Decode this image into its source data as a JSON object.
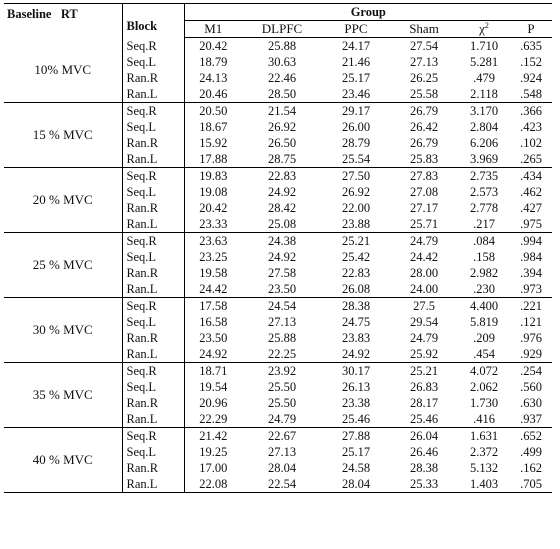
{
  "header": {
    "baseline_label": "Baseline   RT",
    "block_label": "Block",
    "group_label": "Group",
    "columns": [
      "M1",
      "DLPFC",
      "PPC",
      "Sham",
      "χ",
      "P"
    ],
    "chi_superscript": "2"
  },
  "sections": [
    {
      "label": "10% MVC",
      "rows": [
        [
          "Seq.R",
          "20.42",
          "25.88",
          "24.17",
          "27.54",
          "1.710",
          ".635"
        ],
        [
          "Seq.L",
          "18.79",
          "30.63",
          "21.46",
          "27.13",
          "5.281",
          ".152"
        ],
        [
          "Ran.R",
          "24.13",
          "22.46",
          "25.17",
          "26.25",
          ".479",
          ".924"
        ],
        [
          "Ran.L",
          "20.46",
          "28.50",
          "23.46",
          "25.58",
          "2.118",
          ".548"
        ]
      ]
    },
    {
      "label": "15 % MVC",
      "rows": [
        [
          "Seq.R",
          "20.50",
          "21.54",
          "29.17",
          "26.79",
          "3.170",
          ".366"
        ],
        [
          "Seq.L",
          "18.67",
          "26.92",
          "26.00",
          "26.42",
          "2.804",
          ".423"
        ],
        [
          "Ran.R",
          "15.92",
          "26.50",
          "28.79",
          "26.79",
          "6.206",
          ".102"
        ],
        [
          "Ran.L",
          "17.88",
          "28.75",
          "25.54",
          "25.83",
          "3.969",
          ".265"
        ]
      ]
    },
    {
      "label": "20 % MVC",
      "rows": [
        [
          "Seq.R",
          "19.83",
          "22.83",
          "27.50",
          "27.83",
          "2.735",
          ".434"
        ],
        [
          "Seq.L",
          "19.08",
          "24.92",
          "26.92",
          "27.08",
          "2.573",
          ".462"
        ],
        [
          "Ran.R",
          "20.42",
          "28.42",
          "22.00",
          "27.17",
          "2.778",
          ".427"
        ],
        [
          "Ran.L",
          "23.33",
          "25.08",
          "23.88",
          "25.71",
          ".217",
          ".975"
        ]
      ]
    },
    {
      "label": "25 % MVC",
      "rows": [
        [
          "Seq.R",
          "23.63",
          "24.38",
          "25.21",
          "24.79",
          ".084",
          ".994"
        ],
        [
          "Seq.L",
          "23.25",
          "24.92",
          "25.42",
          "24.42",
          ".158",
          ".984"
        ],
        [
          "Ran.R",
          "19.58",
          "27.58",
          "22.83",
          "28.00",
          "2.982",
          ".394"
        ],
        [
          "Ran.L",
          "24.42",
          "23.50",
          "26.08",
          "24.00",
          ".230",
          ".973"
        ]
      ]
    },
    {
      "label": "30 % MVC",
      "rows": [
        [
          "Seq.R",
          "17.58",
          "24.54",
          "28.38",
          "27.5",
          "4.400",
          ".221"
        ],
        [
          "Seq.L",
          "16.58",
          "27.13",
          "24.75",
          "29.54",
          "5.819",
          ".121"
        ],
        [
          "Ran.R",
          "23.50",
          "25.88",
          "23.83",
          "24.79",
          ".209",
          ".976"
        ],
        [
          "Ran.L",
          "24.92",
          "22.25",
          "24.92",
          "25.92",
          ".454",
          ".929"
        ]
      ]
    },
    {
      "label": "35 % MVC",
      "rows": [
        [
          "Seq.R",
          "18.71",
          "23.92",
          "30.17",
          "25.21",
          "4.072",
          ".254"
        ],
        [
          "Seq.L",
          "19.54",
          "25.50",
          "26.13",
          "26.83",
          "2.062",
          ".560"
        ],
        [
          "Ran.R",
          "20.96",
          "25.50",
          "23.38",
          "28.17",
          "1.730",
          ".630"
        ],
        [
          "Ran.L",
          "22.29",
          "24.79",
          "25.46",
          "25.46",
          ".416",
          ".937"
        ]
      ]
    },
    {
      "label": "40 % MVC",
      "rows": [
        [
          "Seq.R",
          "21.42",
          "22.67",
          "27.88",
          "26.04",
          "1.631",
          ".652"
        ],
        [
          "Seq.L",
          "19.25",
          "27.13",
          "25.17",
          "26.46",
          "2.372",
          ".499"
        ],
        [
          "Ran.R",
          "17.00",
          "28.04",
          "24.58",
          "28.38",
          "5.132",
          ".162"
        ],
        [
          "Ran.L",
          "22.08",
          "22.54",
          "28.04",
          "25.33",
          "1.403",
          ".705"
        ]
      ]
    }
  ]
}
